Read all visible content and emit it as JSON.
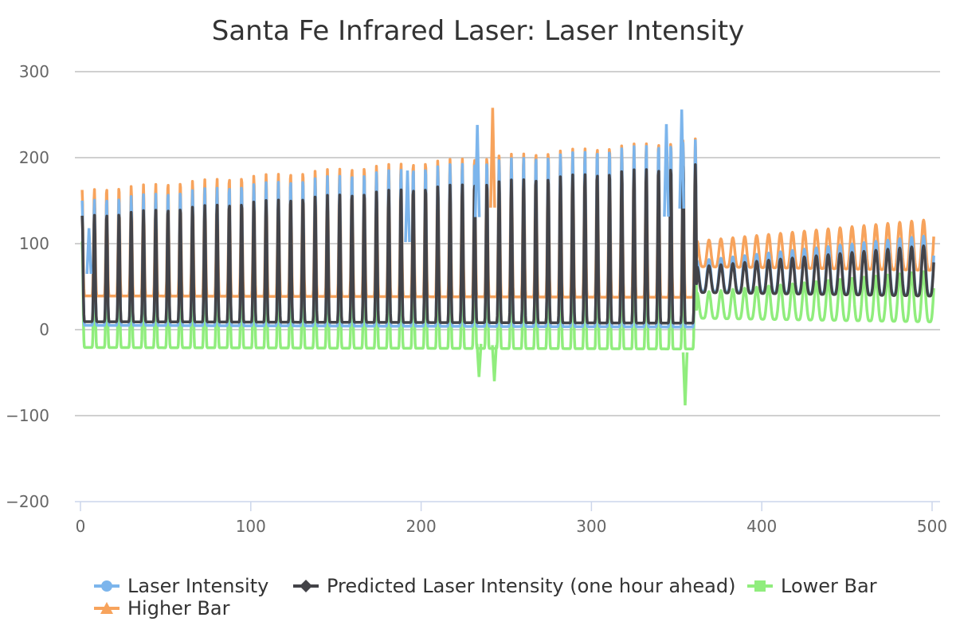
{
  "chart_data": {
    "type": "line",
    "title": "Santa Fe Infrared Laser: Laser Intensity",
    "xlabel": "",
    "ylabel": "",
    "xlim": [
      0,
      500
    ],
    "ylim": [
      -200,
      300
    ],
    "xticks": [
      0,
      100,
      200,
      300,
      400,
      500
    ],
    "yticks": [
      -200,
      -100,
      0,
      100,
      200,
      300
    ],
    "xtick_labels": [
      "0",
      "100",
      "200",
      "300",
      "400",
      "500"
    ],
    "ytick_labels": [
      "−200",
      "−100",
      "0",
      "100",
      "200",
      "300"
    ],
    "grid": true,
    "legend_position": "bottom",
    "phase1": {
      "x_start": 1,
      "x_end": 362,
      "period": 7.2,
      "peak_start": 150,
      "peak_end": 220,
      "trough_start": 5,
      "trough_end": 3,
      "predicted_peak_ratio": 0.72,
      "predicted_trough": 25
    },
    "phase2": {
      "x_start": 362,
      "x_end": 501,
      "period": 7.0,
      "peak_start": 80,
      "peak_end": 110,
      "trough_start": 45,
      "trough_end": 40
    },
    "spikes": [
      {
        "x": 5,
        "value": 118,
        "series": "Laser Intensity"
      },
      {
        "x": 192,
        "value": 185,
        "series": "Laser Intensity"
      },
      {
        "x": 233,
        "value": 238,
        "series": "Laser Intensity"
      },
      {
        "x": 242,
        "value": 258,
        "series": "Higher Bar"
      },
      {
        "x": 344,
        "value": 239,
        "series": "Laser Intensity"
      },
      {
        "x": 353,
        "value": 256,
        "series": "Laser Intensity"
      },
      {
        "x": 355,
        "value": -88,
        "series": "Lower Bar"
      },
      {
        "x": 234,
        "value": -55,
        "series": "Lower Bar"
      },
      {
        "x": 243,
        "value": -60,
        "series": "Lower Bar"
      }
    ],
    "series": [
      {
        "name": "Laser Intensity",
        "color": "#7cb5ec",
        "marker": "circle",
        "offset_factor": 1.0,
        "offset_add": 0
      },
      {
        "name": "Predicted Laser Intensity (one hour ahead)",
        "color": "#434348",
        "marker": "diamond",
        "offset_factor": 0.85,
        "offset_add": 5
      },
      {
        "name": "Lower Bar",
        "color": "#90ed7d",
        "marker": "square",
        "offset_factor": 0.85,
        "offset_add": -25
      },
      {
        "name": "Higher Bar",
        "color": "#f7a35c",
        "marker": "triangle",
        "offset_factor": 0.85,
        "offset_add": 35
      }
    ]
  }
}
